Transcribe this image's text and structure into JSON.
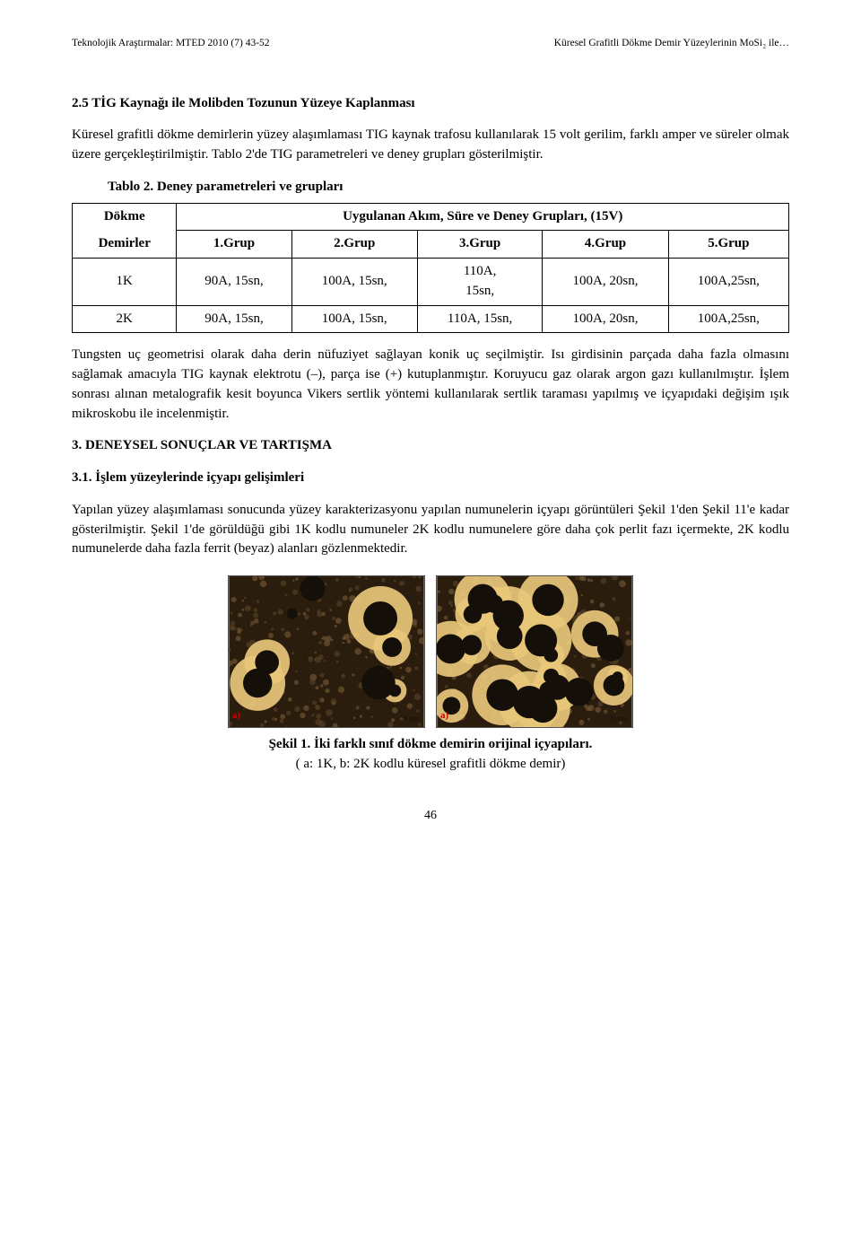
{
  "header": {
    "left": "Teknolojik Araştırmalar: MTED 2010 (7) 43-52",
    "right": "Küresel Grafitli Dökme Demir Yüzeylerinin MoSi₂ ile…"
  },
  "sec_2_5": {
    "title": "2.5 TİG Kaynağı ile Molibden Tozunun Yüzeye Kaplanması",
    "para": "Küresel grafitli dökme demirlerin yüzey alaşımlaması TIG kaynak trafosu kullanılarak 15 volt gerilim, farklı amper ve süreler olmak üzere gerçekleştirilmiştir. Tablo 2'de TIG parametreleri ve deney grupları gösterilmiştir."
  },
  "table2": {
    "caption": "Tablo 2.  Deney parametreleri ve grupları",
    "merged_header": "Uygulanan Akım, Süre ve Deney Grupları, (15V)",
    "rowhdr_top": "Dökme",
    "rowhdr_bot": "Demirler",
    "cols": [
      "1.Grup",
      "2.Grup",
      "3.Grup",
      "4.Grup",
      "5.Grup"
    ],
    "rows": [
      {
        "k": "1K",
        "cells": [
          "90A, 15sn,",
          "100A, 15sn,",
          "110A,\n15sn,",
          "100A, 20sn,",
          "100A,25sn,"
        ]
      },
      {
        "k": "2K",
        "cells": [
          "90A, 15sn,",
          "100A, 15sn,",
          "110A, 15sn,",
          "100A, 20sn,",
          "100A,25sn,"
        ]
      }
    ]
  },
  "para_after_table": "Tungsten uç geometrisi olarak daha derin nüfuziyet sağlayan konik uç seçilmiştir. Isı girdisinin parçada daha fazla olmasını sağlamak amacıyla TIG kaynak elektrotu (–), parça ise (+) kutuplanmıştır. Koruyucu gaz olarak argon gazı kullanılmıştır. İşlem sonrası alınan metalografik kesit boyunca Vikers sertlik yöntemi kullanılarak sertlik taraması yapılmış ve içyapıdaki değişim ışık mikroskobu ile incelenmiştir.",
  "sec_3": {
    "title": "3. DENEYSEL SONUÇLAR VE TARTIŞMA"
  },
  "sec_3_1": {
    "title": "3.1. İşlem yüzeylerinde içyapı gelişimleri",
    "para": "Yapılan yüzey alaşımlaması sonucunda yüzey karakterizasyonu yapılan numunelerin içyapı görüntüleri Şekil 1'den Şekil 11'e kadar gösterilmiştir. Şekil 1'de görüldüğü gibi 1K kodlu numuneler 2K kodlu numunelere göre daha çok perlit fazı içermekte, 2K kodlu numunelerde daha fazla ferrit (beyaz) alanları gözlenmektedir."
  },
  "fig1": {
    "tag_a": "a)",
    "tag_b": "a)",
    "scale": "20 μm",
    "caption_line1": "Şekil 1. İki farklı sınıf dökme demirin orijinal içyapıları.",
    "caption_line2": "( a: 1K, b: 2K kodlu küresel grafitli dökme demir)",
    "micrograph_style": {
      "bg_dark": "#2a1d0e",
      "ferrite": "#e8c779",
      "graphite": "#141009",
      "pearlite_a": "#5b4426",
      "pearlite_b": "#7a5c35"
    }
  },
  "page_number": "46"
}
